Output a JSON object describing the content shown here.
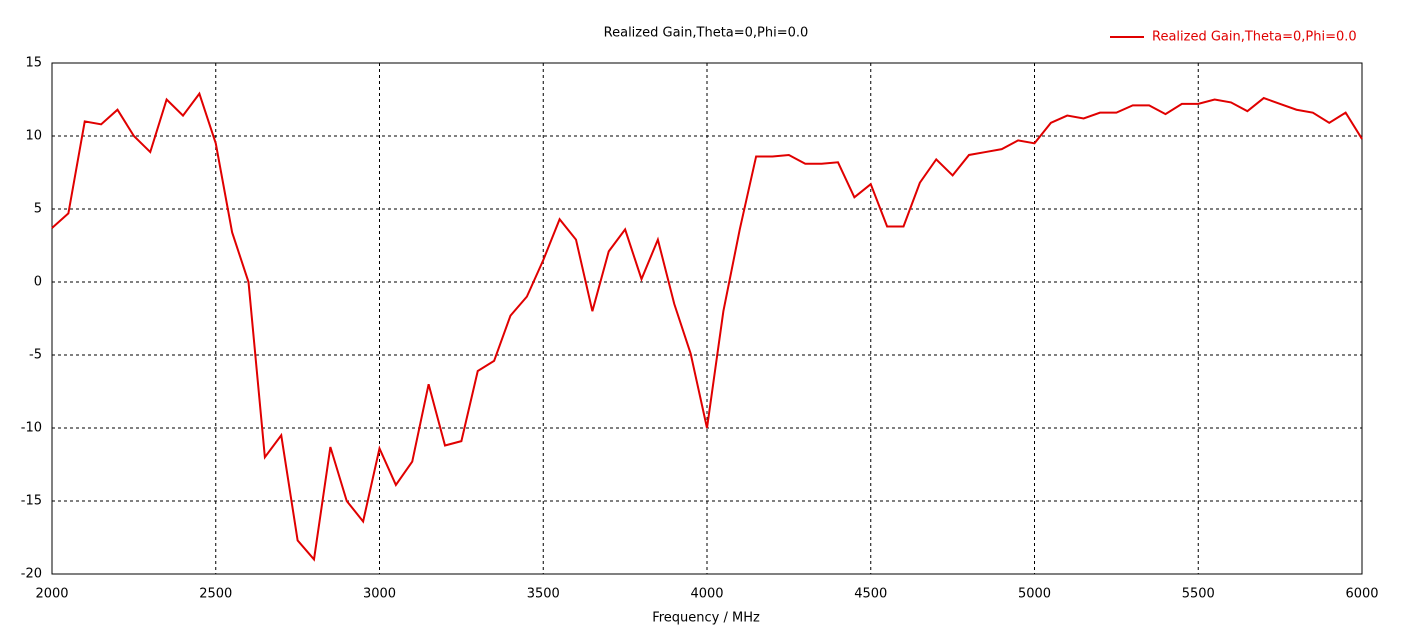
{
  "chart_data": {
    "type": "line",
    "title": "Realized Gain,Theta=0,Phi=0.0",
    "x_label": "Frequency / MHz",
    "x": [
      2000,
      2050,
      2100,
      2150,
      2200,
      2250,
      2300,
      2350,
      2400,
      2450,
      2500,
      2550,
      2600,
      2650,
      2700,
      2750,
      2800,
      2850,
      2900,
      2950,
      3000,
      3050,
      3100,
      3150,
      3200,
      3250,
      3300,
      3350,
      3400,
      3450,
      3500,
      3550,
      3600,
      3650,
      3700,
      3750,
      3800,
      3850,
      3900,
      3950,
      4000,
      4050,
      4100,
      4150,
      4200,
      4250,
      4300,
      4350,
      4400,
      4450,
      4500,
      4550,
      4600,
      4650,
      4700,
      4750,
      4800,
      4850,
      4900,
      4950,
      5000,
      5050,
      5100,
      5150,
      5200,
      5250,
      5300,
      5350,
      5400,
      5450,
      5500,
      5550,
      5600,
      5650,
      5700,
      5750,
      5800,
      5850,
      5900,
      5950,
      6000
    ],
    "series": [
      {
        "name": "Realized Gain,Theta=0,Phi=0.0",
        "color": "#e00000",
        "values": [
          3.7,
          4.7,
          11.0,
          10.8,
          11.8,
          10.0,
          8.9,
          12.5,
          11.4,
          12.9,
          9.5,
          3.4,
          0.0,
          -12.0,
          -10.5,
          -17.7,
          -19.0,
          -11.3,
          -15.0,
          -16.4,
          -11.4,
          -13.9,
          -12.3,
          -7.0,
          -11.2,
          -10.9,
          -6.1,
          -5.4,
          -2.3,
          -1.0,
          1.5,
          4.3,
          2.9,
          -2.0,
          2.1,
          3.6,
          0.2,
          2.9,
          -1.5,
          -4.9,
          -10.0,
          -2.0,
          3.6,
          8.6,
          8.6,
          8.7,
          8.1,
          8.1,
          8.2,
          5.8,
          6.7,
          3.8,
          3.8,
          6.8,
          8.4,
          7.3,
          8.7,
          8.9,
          9.1,
          9.7,
          9.5,
          10.9,
          11.4,
          11.2,
          11.6,
          11.6,
          12.1,
          12.1,
          11.5,
          12.2,
          12.2,
          12.5,
          12.3,
          11.7,
          12.6,
          12.2,
          11.8,
          11.6,
          10.9,
          11.6,
          9.8
        ]
      }
    ],
    "xlim": [
      2000,
      6000
    ],
    "xticks": [
      2000,
      2500,
      3000,
      3500,
      4000,
      4500,
      5000,
      5500,
      6000
    ],
    "ylim": [
      -20,
      15
    ],
    "yticks": [
      -20,
      -15,
      -10,
      -5,
      0,
      5,
      10,
      15
    ],
    "grid": true,
    "legend": "top-right"
  }
}
